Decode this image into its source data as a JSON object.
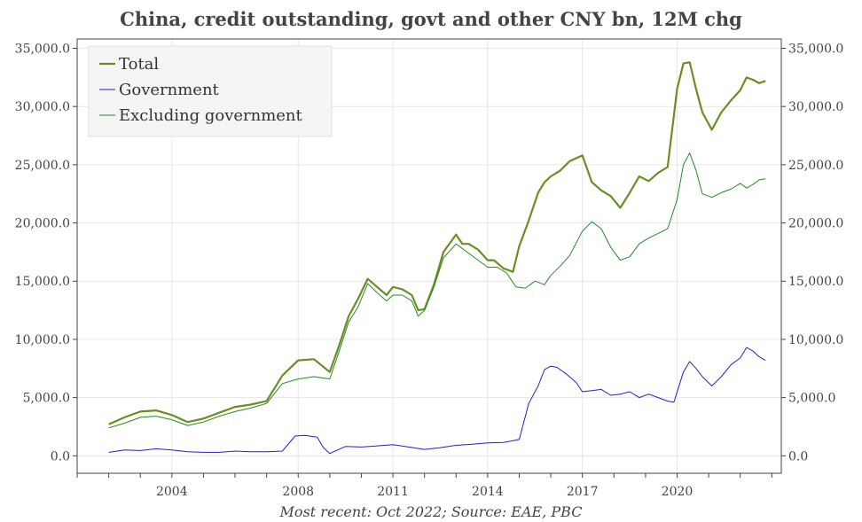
{
  "chart_data": {
    "type": "line",
    "title": "China, credit outstanding, govt and other CNY bn, 12M chg",
    "subtitle": "Most recent: Oct 2022; Source: EAE, PBC",
    "xlabel": "",
    "ylabel": "",
    "xlim": [
      2001.0,
      2023.3
    ],
    "ylim": [
      -1500,
      35800
    ],
    "x_ticks": [
      2004,
      2008,
      2011,
      2014,
      2017,
      2020
    ],
    "x_tick_labels": [
      "2004",
      "2008",
      "2011",
      "2014",
      "2017",
      "2020"
    ],
    "y_ticks": [
      0,
      5000,
      10000,
      15000,
      20000,
      25000,
      30000,
      35000
    ],
    "y_tick_labels": [
      "0.0",
      "5,000.0",
      "10,000.0",
      "15,000.0",
      "20,000.0",
      "25,000.0",
      "30,000.0",
      "35,000.0"
    ],
    "dual_y_axis": true,
    "grid": true,
    "legend_position": "top-left",
    "series": [
      {
        "name": "Total",
        "color": "#6b8e23",
        "x": [
          2002.0,
          2002.5,
          2003.0,
          2003.5,
          2004.0,
          2004.5,
          2005.0,
          2005.5,
          2006.0,
          2006.5,
          2007.0,
          2007.5,
          2008.0,
          2008.5,
          2009.0,
          2009.3,
          2009.6,
          2009.9,
          2010.2,
          2010.5,
          2010.8,
          2011.0,
          2011.3,
          2011.6,
          2011.8,
          2012.0,
          2012.3,
          2012.6,
          2013.0,
          2013.2,
          2013.4,
          2013.7,
          2014.0,
          2014.2,
          2014.5,
          2014.8,
          2015.0,
          2015.3,
          2015.6,
          2015.8,
          2016.0,
          2016.3,
          2016.6,
          2017.0,
          2017.3,
          2017.6,
          2017.9,
          2018.2,
          2018.5,
          2018.8,
          2019.1,
          2019.4,
          2019.7,
          2020.0,
          2020.2,
          2020.4,
          2020.6,
          2020.8,
          2021.1,
          2021.4,
          2021.7,
          2022.0,
          2022.2,
          2022.4,
          2022.6,
          2022.8
        ],
        "values": [
          2700,
          3300,
          3800,
          3900,
          3500,
          2900,
          3200,
          3700,
          4200,
          4400,
          4700,
          6900,
          8200,
          8300,
          7200,
          9500,
          12000,
          13500,
          15200,
          14500,
          13800,
          14500,
          14300,
          13800,
          12500,
          12600,
          14700,
          17500,
          19000,
          18200,
          18200,
          17700,
          16800,
          16800,
          16100,
          15800,
          18000,
          20200,
          22600,
          23500,
          24000,
          24500,
          25300,
          25800,
          23500,
          22800,
          22300,
          21300,
          22600,
          24000,
          23600,
          24300,
          24800,
          31500,
          33700,
          33800,
          31500,
          29500,
          28000,
          29500,
          30500,
          31400,
          32500,
          32300,
          32000,
          32200
        ]
      },
      {
        "name": "Government",
        "color": "#2020cc",
        "x": [
          2002.0,
          2002.5,
          2003.0,
          2003.5,
          2004.0,
          2004.5,
          2005.0,
          2005.5,
          2006.0,
          2006.5,
          2007.0,
          2007.5,
          2007.9,
          2008.2,
          2008.6,
          2008.8,
          2009.0,
          2009.5,
          2010.0,
          2010.5,
          2011.0,
          2011.5,
          2012.0,
          2012.5,
          2013.0,
          2013.5,
          2014.0,
          2014.5,
          2015.0,
          2015.3,
          2015.6,
          2015.8,
          2016.0,
          2016.2,
          2016.5,
          2016.8,
          2017.0,
          2017.3,
          2017.6,
          2017.9,
          2018.2,
          2018.5,
          2018.8,
          2019.1,
          2019.4,
          2019.7,
          2019.9,
          2020.2,
          2020.4,
          2020.6,
          2020.8,
          2021.1,
          2021.4,
          2021.7,
          2022.0,
          2022.2,
          2022.4,
          2022.6,
          2022.8
        ],
        "values": [
          300,
          500,
          450,
          600,
          500,
          350,
          300,
          300,
          400,
          350,
          350,
          400,
          1700,
          1750,
          1600,
          700,
          200,
          800,
          750,
          850,
          950,
          750,
          550,
          700,
          900,
          1000,
          1100,
          1150,
          1400,
          4500,
          6000,
          7400,
          7700,
          7600,
          7000,
          6300,
          5500,
          5600,
          5700,
          5200,
          5300,
          5500,
          5000,
          5300,
          5000,
          4700,
          4600,
          7200,
          8100,
          7500,
          6800,
          6000,
          6800,
          7800,
          8400,
          9300,
          9000,
          8500,
          8200
        ]
      },
      {
        "name": "Excluding government",
        "color": "#228b22",
        "x": [
          2002.0,
          2002.5,
          2003.0,
          2003.5,
          2004.0,
          2004.5,
          2005.0,
          2005.5,
          2006.0,
          2006.5,
          2007.0,
          2007.5,
          2008.0,
          2008.5,
          2009.0,
          2009.3,
          2009.6,
          2009.9,
          2010.2,
          2010.5,
          2010.8,
          2011.0,
          2011.3,
          2011.6,
          2011.8,
          2012.0,
          2012.3,
          2012.6,
          2013.0,
          2013.3,
          2013.6,
          2014.0,
          2014.3,
          2014.6,
          2014.9,
          2015.2,
          2015.5,
          2015.8,
          2016.0,
          2016.3,
          2016.6,
          2017.0,
          2017.3,
          2017.6,
          2017.9,
          2018.2,
          2018.5,
          2018.8,
          2019.1,
          2019.4,
          2019.7,
          2020.0,
          2020.2,
          2020.4,
          2020.6,
          2020.8,
          2021.1,
          2021.4,
          2021.7,
          2022.0,
          2022.2,
          2022.4,
          2022.6,
          2022.8
        ],
        "values": [
          2400,
          2800,
          3300,
          3400,
          3100,
          2600,
          2900,
          3400,
          3800,
          4100,
          4500,
          6200,
          6600,
          6800,
          6600,
          9000,
          11500,
          12800,
          14800,
          14000,
          13300,
          13800,
          13800,
          13300,
          12000,
          12500,
          14500,
          17000,
          18200,
          17600,
          17000,
          16200,
          16200,
          15700,
          14500,
          14400,
          15000,
          14700,
          15500,
          16300,
          17200,
          19300,
          20100,
          19500,
          17900,
          16800,
          17100,
          18200,
          18700,
          19100,
          19500,
          22000,
          25000,
          26000,
          24500,
          22500,
          22200,
          22600,
          22900,
          23400,
          23000,
          23300,
          23700,
          23800
        ]
      }
    ]
  }
}
